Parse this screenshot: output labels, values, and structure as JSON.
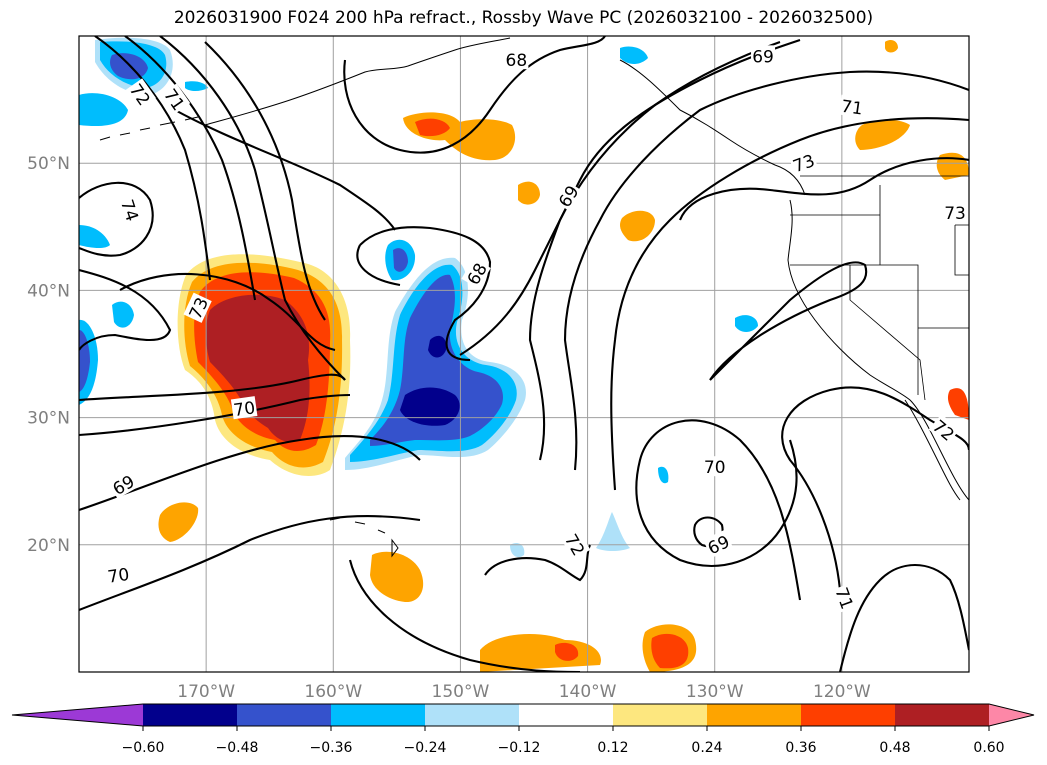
{
  "title": "2026031900 F024 200 hPa refract., Rossby Wave PC (2026032100 - 2026032500)",
  "map": {
    "lon_range": [
      -180,
      -110
    ],
    "lat_range": [
      10,
      60
    ],
    "lon_ticks": [
      {
        "value": -170,
        "label": "170°W"
      },
      {
        "value": -160,
        "label": "160°W"
      },
      {
        "value": -150,
        "label": "150°W"
      },
      {
        "value": -140,
        "label": "140°W"
      },
      {
        "value": -130,
        "label": "130°W"
      },
      {
        "value": -120,
        "label": "120°W"
      }
    ],
    "lat_ticks": [
      {
        "value": 20,
        "label": "20°N"
      },
      {
        "value": 30,
        "label": "30°N"
      },
      {
        "value": 40,
        "label": "40°N"
      },
      {
        "value": 50,
        "label": "50°N"
      }
    ],
    "grid": true,
    "contour_labels": [
      {
        "text": "72",
        "lon": -175.2,
        "lat": 55.4,
        "rot": 55
      },
      {
        "text": "71",
        "lon": -172.5,
        "lat": 55.0,
        "rot": 55
      },
      {
        "text": "74",
        "lon": -176.0,
        "lat": 46.3,
        "rot": 72
      },
      {
        "text": "73",
        "lon": -170.6,
        "lat": 38.6,
        "rot": -65
      },
      {
        "text": "70",
        "lon": -167.0,
        "lat": 30.7,
        "rot": -8
      },
      {
        "text": "69",
        "lon": -176.5,
        "lat": 24.7,
        "rot": -30
      },
      {
        "text": "70",
        "lon": -176.9,
        "lat": 17.6,
        "rot": -8
      },
      {
        "text": "68",
        "lon": -145.6,
        "lat": 58.1,
        "rot": 0
      },
      {
        "text": "68",
        "lon": -148.7,
        "lat": 41.3,
        "rot": -60
      },
      {
        "text": "69",
        "lon": -141.5,
        "lat": 47.4,
        "rot": -58
      },
      {
        "text": "69",
        "lon": -126.2,
        "lat": 58.4,
        "rot": 0
      },
      {
        "text": "71",
        "lon": -119.2,
        "lat": 54.4,
        "rot": 8
      },
      {
        "text": "73",
        "lon": -123.0,
        "lat": 50.0,
        "rot": -20
      },
      {
        "text": "73",
        "lon": -111.1,
        "lat": 46.1,
        "rot": 0
      },
      {
        "text": "72",
        "lon": -112.0,
        "lat": 29.0,
        "rot": 40
      },
      {
        "text": "70",
        "lon": -130.0,
        "lat": 26.1,
        "rot": 0
      },
      {
        "text": "69",
        "lon": -129.7,
        "lat": 20.0,
        "rot": -25
      },
      {
        "text": "72",
        "lon": -141.0,
        "lat": 20.0,
        "rot": 60
      },
      {
        "text": "71",
        "lon": -119.8,
        "lat": 15.8,
        "rot": 70
      }
    ]
  },
  "colorbar": {
    "ticks": [
      "−0.60",
      "−0.48",
      "−0.36",
      "−0.24",
      "−0.12",
      "0.12",
      "0.24",
      "0.36",
      "0.48",
      "0.60"
    ],
    "colors": [
      "#9c39d6",
      "#02008c",
      "#3552cc",
      "#00bdfd",
      "#afe1f9",
      "#ffffff",
      "#fde77f",
      "#fea400",
      "#fe3f00",
      "#ae1f23",
      "#fd87a7"
    ]
  }
}
